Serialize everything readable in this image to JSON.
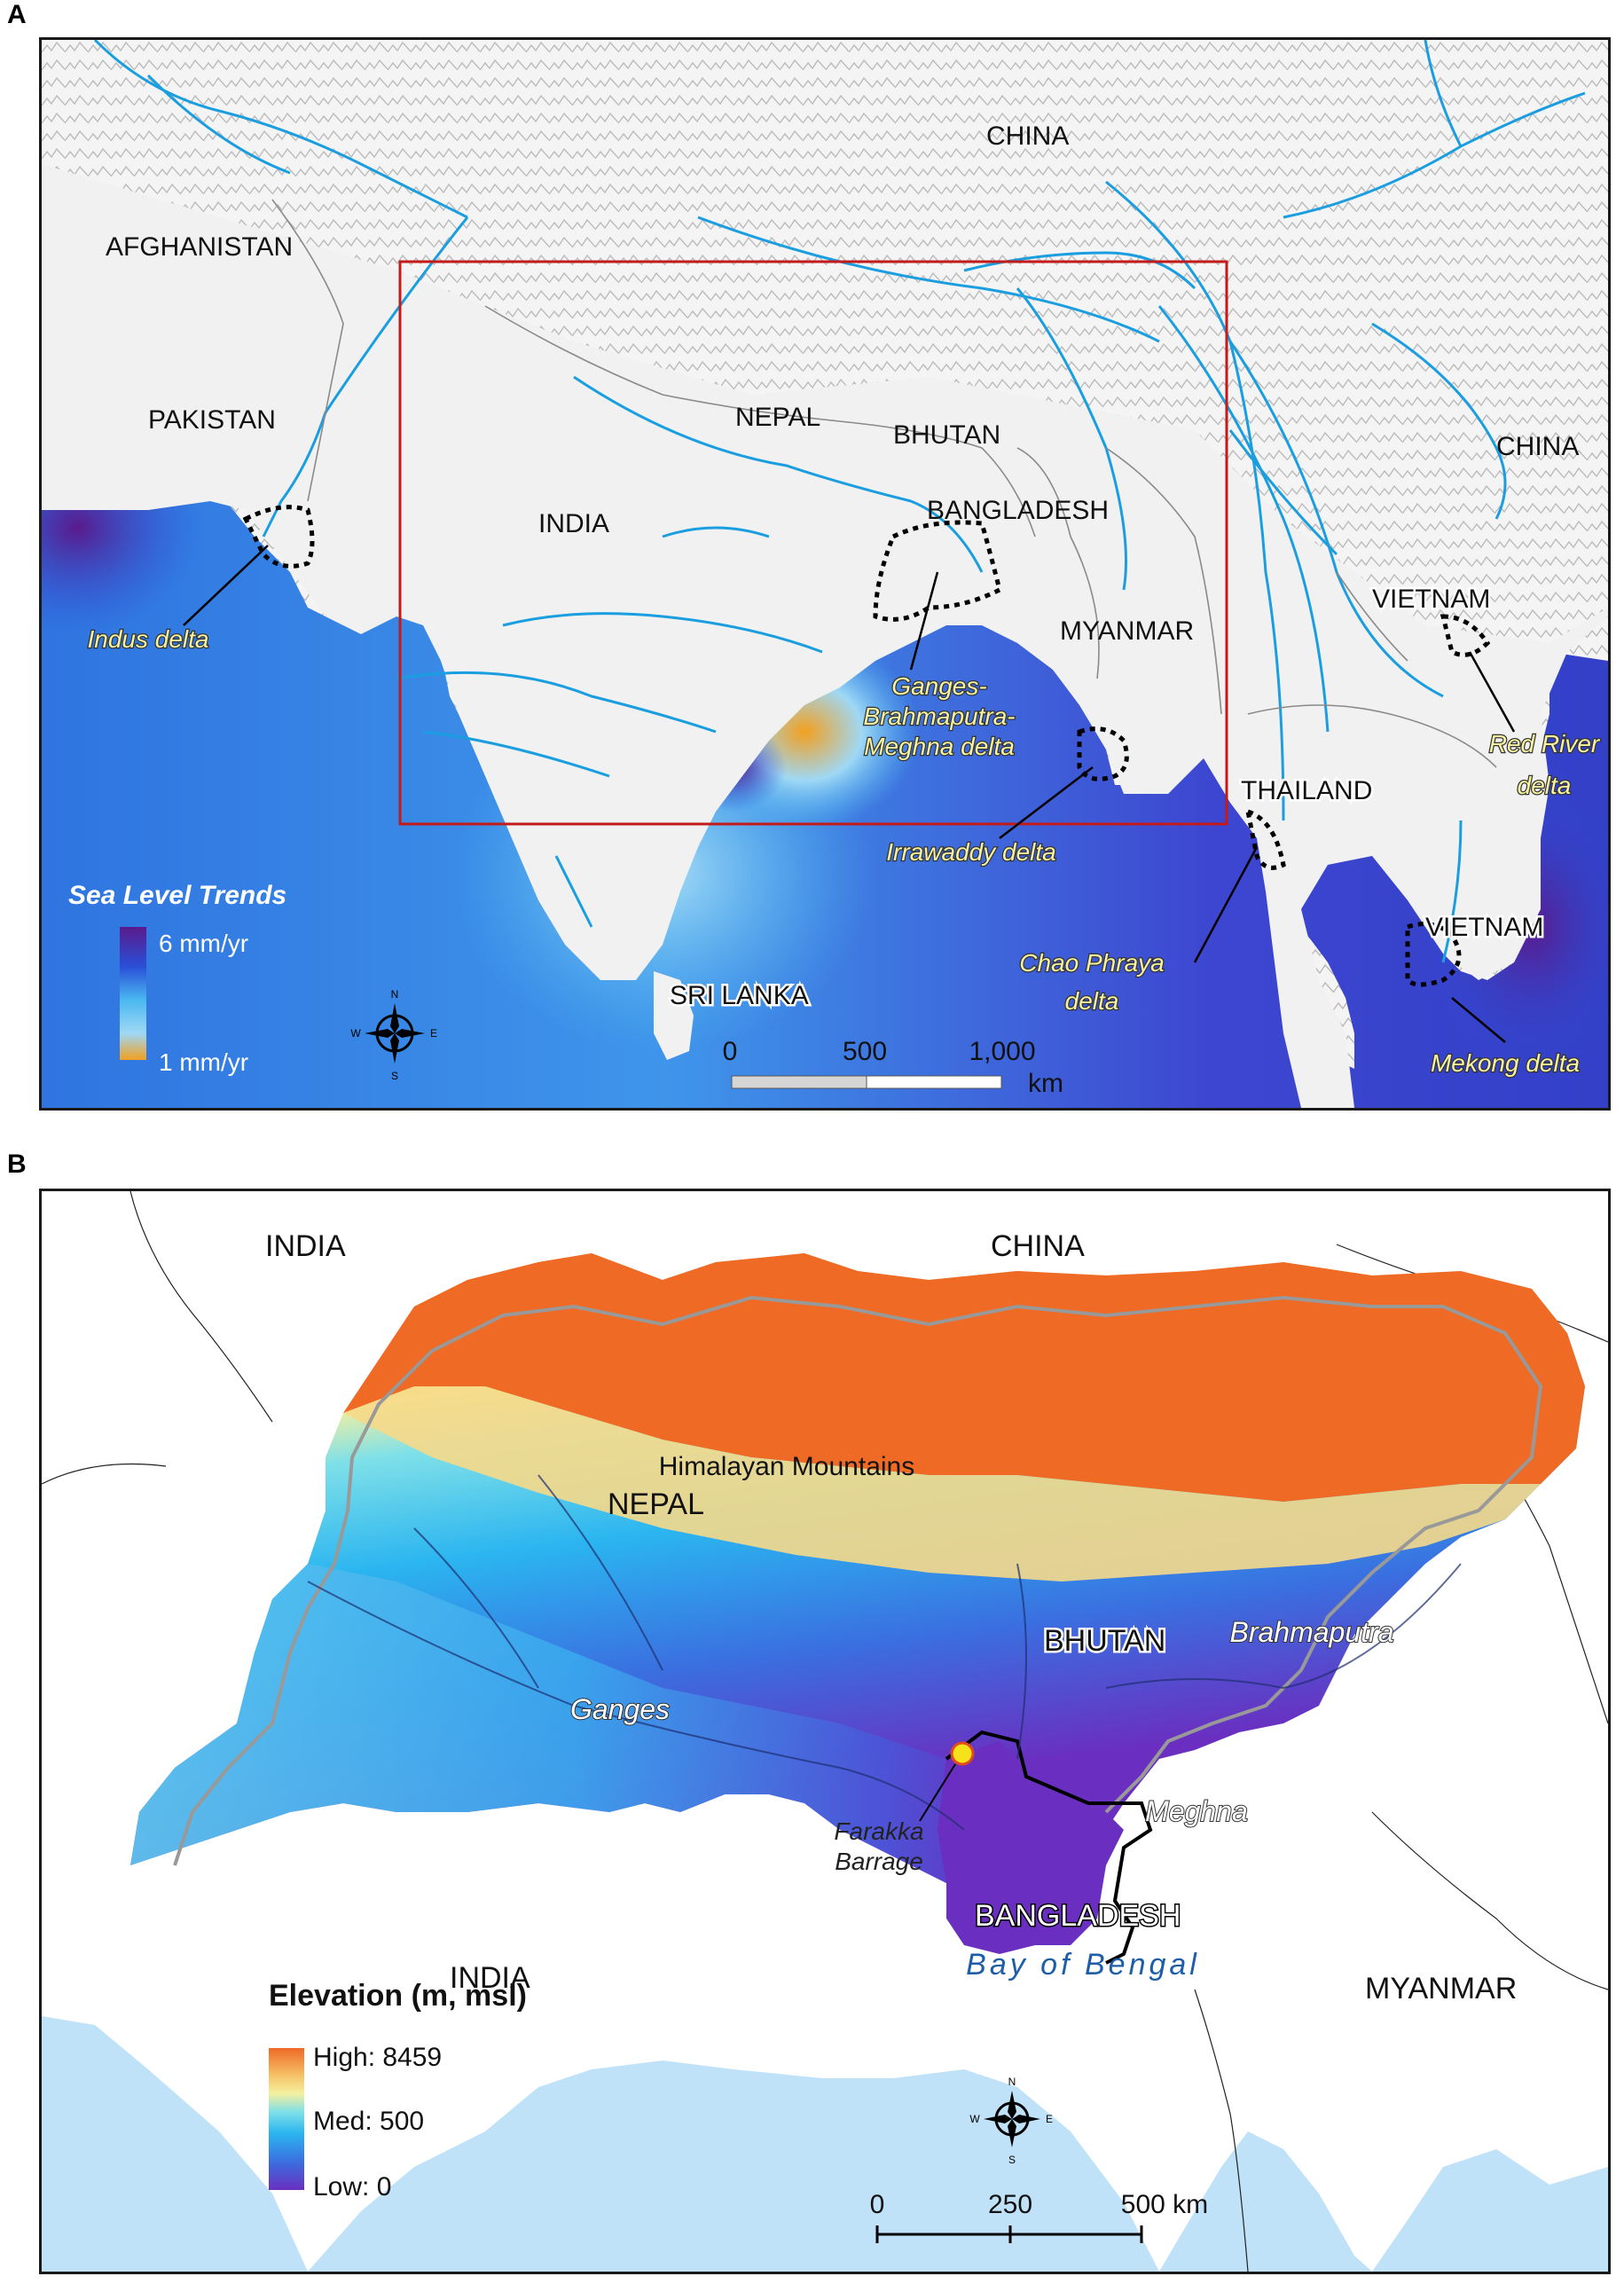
{
  "panel_a": {
    "letter": "A",
    "countries": [
      "CHINA",
      "AFGHANISTAN",
      "PAKISTAN",
      "NEPAL",
      "BHUTAN",
      "CHINA",
      "INDIA",
      "BANGLADESH",
      "MYANMAR",
      "VIETNAM",
      "THAILAND",
      "VIETNAM",
      "SRI LANKA"
    ],
    "deltas": {
      "indus": "Indus delta",
      "gbm_1": "Ganges-",
      "gbm_2": "Brahmaputra-",
      "gbm_3": "Meghna delta",
      "irrawaddy": "Irrawaddy delta",
      "red_1": "Red River",
      "red_2": "delta",
      "chao_1": "Chao Phraya",
      "chao_2": "delta",
      "mekong": "Mekong delta"
    },
    "legend": {
      "title": "Sea Level Trends",
      "high": "6 mm/yr",
      "low": "1 mm/yr",
      "colors": [
        "#5a1a8c",
        "#2a4fd8",
        "#4ab8f0",
        "#9fd8f5",
        "#f2a020"
      ]
    },
    "scale": {
      "ticks": [
        "0",
        "500",
        "1,000"
      ],
      "unit": "km"
    },
    "compass": [
      "N",
      "S",
      "E",
      "W"
    ]
  },
  "panel_b": {
    "letter": "B",
    "countries": [
      "INDIA",
      "CHINA",
      "NEPAL",
      "BHUTAN",
      "BANGLADESH",
      "INDIA",
      "MYANMAR"
    ],
    "features": {
      "mountains": "Himalayan Mountains",
      "brahmaputra": "Brahmaputra",
      "ganges": "Ganges",
      "meghna": "Meghna",
      "farakka_1": "Farakka",
      "farakka_2": "Barrage",
      "bay": "Bay of Bengal"
    },
    "legend": {
      "title": "Elevation (m, msl)",
      "high": "High: 8459",
      "med": "Med: 500",
      "low": "Low: 0",
      "colors": [
        "#ee6a25",
        "#f6c46a",
        "#f5f0a0",
        "#7fe0e8",
        "#2bb5f0",
        "#3a6fe0",
        "#6a2fc0"
      ]
    },
    "scale": {
      "ticks": [
        "0",
        "250",
        "500 km"
      ]
    },
    "compass": [
      "N",
      "S",
      "E",
      "W"
    ],
    "colors": {
      "sea": "#bfe2f8",
      "land": "#ffffff",
      "marker": "#f5e21a"
    }
  }
}
